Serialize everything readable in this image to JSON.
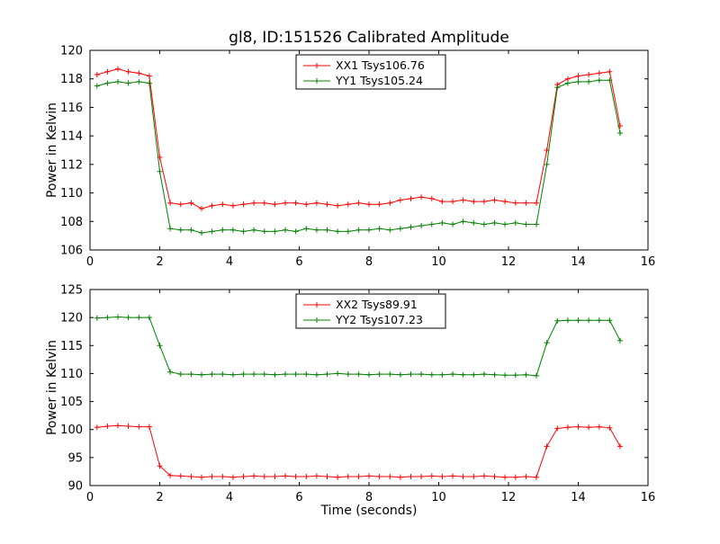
{
  "figure": {
    "title": "gl8, ID:151526 Calibrated Amplitude",
    "xlabel": "Time (seconds)"
  },
  "colors": {
    "red_series": "#ff0000",
    "green_series": "#008000",
    "axes": "#000000",
    "background": "#ffffff"
  },
  "chart_data": [
    {
      "type": "line",
      "ylabel": "Power in Kelvin",
      "xlim": [
        0,
        16
      ],
      "ylim": [
        106,
        120
      ],
      "xticks": [
        0,
        2,
        4,
        6,
        8,
        10,
        12,
        14,
        16
      ],
      "yticks": [
        106,
        108,
        110,
        112,
        114,
        116,
        118,
        120
      ],
      "legend_position": "upper center",
      "grid": false,
      "marker": "+",
      "x": [
        0.2,
        0.5,
        0.8,
        1.1,
        1.4,
        1.7,
        2.0,
        2.3,
        2.6,
        2.9,
        3.2,
        3.5,
        3.8,
        4.1,
        4.4,
        4.7,
        5.0,
        5.3,
        5.6,
        5.9,
        6.2,
        6.5,
        6.8,
        7.1,
        7.4,
        7.7,
        8.0,
        8.3,
        8.6,
        8.9,
        9.2,
        9.5,
        9.8,
        10.1,
        10.4,
        10.7,
        11.0,
        11.3,
        11.6,
        11.9,
        12.2,
        12.5,
        12.8,
        13.1,
        13.4,
        13.7,
        14.0,
        14.3,
        14.6,
        14.9,
        15.2
      ],
      "series": [
        {
          "name": "XX1 Tsys106.76",
          "color": "#ff0000",
          "marker": "+",
          "values": [
            118.3,
            118.5,
            118.7,
            118.5,
            118.4,
            118.2,
            112.5,
            109.3,
            109.2,
            109.3,
            108.9,
            109.1,
            109.2,
            109.1,
            109.2,
            109.3,
            109.3,
            109.2,
            109.3,
            109.3,
            109.2,
            109.3,
            109.2,
            109.1,
            109.2,
            109.3,
            109.2,
            109.2,
            109.3,
            109.5,
            109.6,
            109.7,
            109.6,
            109.4,
            109.4,
            109.5,
            109.4,
            109.4,
            109.5,
            109.4,
            109.3,
            109.3,
            109.3,
            113.0,
            117.6,
            118.0,
            118.2,
            118.3,
            118.4,
            118.5,
            114.7
          ]
        },
        {
          "name": "YY1 Tsys105.24",
          "color": "#008000",
          "marker": "+",
          "values": [
            117.5,
            117.7,
            117.8,
            117.7,
            117.8,
            117.7,
            111.5,
            107.5,
            107.4,
            107.4,
            107.2,
            107.3,
            107.4,
            107.4,
            107.3,
            107.4,
            107.3,
            107.3,
            107.4,
            107.3,
            107.5,
            107.4,
            107.4,
            107.3,
            107.3,
            107.4,
            107.4,
            107.5,
            107.4,
            107.5,
            107.6,
            107.7,
            107.8,
            107.9,
            107.8,
            108.0,
            107.9,
            107.8,
            107.9,
            107.8,
            107.9,
            107.8,
            107.8,
            112.0,
            117.4,
            117.7,
            117.8,
            117.8,
            117.9,
            117.9,
            114.2
          ]
        }
      ]
    },
    {
      "type": "line",
      "ylabel": "Power in Kelvin",
      "xlabel": "Time (seconds)",
      "xlim": [
        0,
        16
      ],
      "ylim": [
        90,
        125
      ],
      "xticks": [
        0,
        2,
        4,
        6,
        8,
        10,
        12,
        14,
        16
      ],
      "yticks": [
        90,
        95,
        100,
        105,
        110,
        115,
        120,
        125
      ],
      "legend_position": "upper center",
      "grid": false,
      "marker": "+",
      "x": [
        0.2,
        0.5,
        0.8,
        1.1,
        1.4,
        1.7,
        2.0,
        2.3,
        2.6,
        2.9,
        3.2,
        3.5,
        3.8,
        4.1,
        4.4,
        4.7,
        5.0,
        5.3,
        5.6,
        5.9,
        6.2,
        6.5,
        6.8,
        7.1,
        7.4,
        7.7,
        8.0,
        8.3,
        8.6,
        8.9,
        9.2,
        9.5,
        9.8,
        10.1,
        10.4,
        10.7,
        11.0,
        11.3,
        11.6,
        11.9,
        12.2,
        12.5,
        12.8,
        13.1,
        13.4,
        13.7,
        14.0,
        14.3,
        14.6,
        14.9,
        15.2
      ],
      "series": [
        {
          "name": "XX2 Tsys89.91",
          "color": "#ff0000",
          "marker": "+",
          "values": [
            100.4,
            100.6,
            100.7,
            100.6,
            100.5,
            100.5,
            93.5,
            91.8,
            91.7,
            91.6,
            91.5,
            91.6,
            91.6,
            91.5,
            91.6,
            91.7,
            91.6,
            91.6,
            91.7,
            91.6,
            91.6,
            91.7,
            91.6,
            91.5,
            91.6,
            91.6,
            91.7,
            91.6,
            91.6,
            91.5,
            91.6,
            91.6,
            91.7,
            91.6,
            91.7,
            91.6,
            91.6,
            91.7,
            91.6,
            91.5,
            91.5,
            91.6,
            91.5,
            97.0,
            100.2,
            100.4,
            100.5,
            100.4,
            100.5,
            100.3,
            97.0
          ]
        },
        {
          "name": "YY2 Tsys107.23",
          "color": "#008000",
          "marker": "+",
          "values": [
            119.9,
            120.0,
            120.1,
            120.0,
            120.0,
            120.0,
            115.0,
            110.3,
            109.9,
            109.9,
            109.8,
            109.9,
            109.9,
            109.8,
            109.9,
            109.9,
            109.9,
            109.8,
            109.9,
            109.9,
            109.9,
            109.8,
            109.9,
            110.0,
            109.9,
            109.9,
            109.8,
            109.9,
            109.9,
            109.8,
            109.9,
            109.9,
            109.8,
            109.8,
            109.9,
            109.8,
            109.8,
            109.9,
            109.8,
            109.7,
            109.7,
            109.8,
            109.6,
            115.5,
            119.4,
            119.5,
            119.5,
            119.5,
            119.5,
            119.5,
            115.9
          ]
        }
      ]
    }
  ]
}
